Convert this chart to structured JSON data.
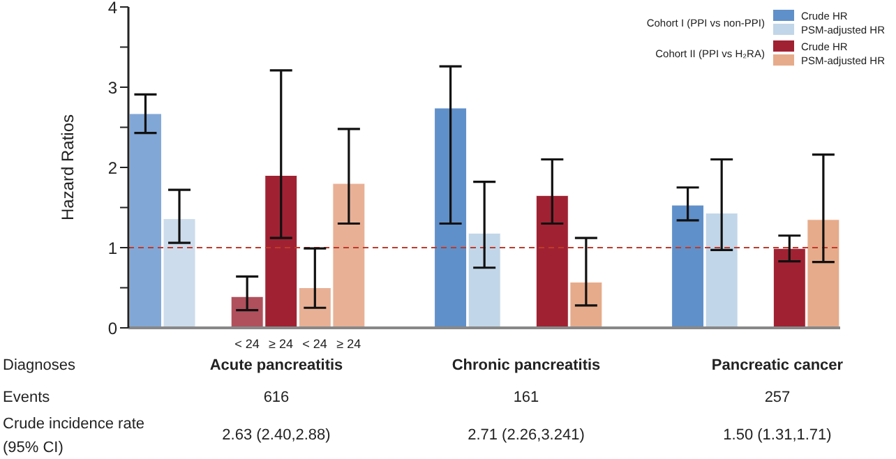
{
  "chart_data": {
    "type": "bar",
    "ylabel": "Hazard Ratios",
    "categories": [
      null,
      null,
      null,
      "< 24",
      "≥ 24",
      "< 24",
      "≥ 24",
      null,
      null,
      null,
      null,
      null,
      null,
      null,
      null,
      null,
      null,
      null,
      null,
      null,
      null
    ],
    "series": [
      {
        "name": "Crude HR",
        "color": "#6090c9",
        "values": [
          2.67,
          null,
          null,
          null,
          null,
          null,
          null,
          null,
          null,
          2.74,
          null,
          null,
          null,
          null,
          null,
          null,
          1.53,
          null,
          null,
          null,
          null
        ],
        "errors": [
          [
            2.43,
            2.91
          ],
          null,
          null,
          null,
          null,
          null,
          null,
          null,
          null,
          [
            1.3,
            3.26
          ],
          null,
          null,
          null,
          null,
          null,
          null,
          [
            1.34,
            1.75
          ],
          null,
          null,
          null,
          null
        ],
        "colors": [
          "#81a7d6",
          null,
          null,
          null,
          null,
          null,
          null,
          null,
          null,
          "#6090c9",
          null,
          null,
          null,
          null,
          null,
          null,
          "#6090c9",
          null,
          null,
          null,
          null
        ]
      },
      {
        "name": "PSM-adjusted HR",
        "color": "#c1d6e8",
        "values": [
          null,
          1.36,
          null,
          null,
          null,
          null,
          null,
          null,
          null,
          null,
          1.18,
          null,
          null,
          null,
          null,
          null,
          null,
          1.43,
          null,
          null,
          null
        ],
        "errors": [
          null,
          [
            1.06,
            1.72
          ],
          null,
          null,
          null,
          null,
          null,
          null,
          null,
          null,
          [
            0.75,
            1.82
          ],
          null,
          null,
          null,
          null,
          null,
          null,
          [
            0.97,
            2.1
          ],
          null,
          null,
          null
        ],
        "colors": [
          null,
          "#ccdcec",
          null,
          null,
          null,
          null,
          null,
          null,
          null,
          null,
          "#c1d6e8",
          null,
          null,
          null,
          null,
          null,
          null,
          "#c1d6e8",
          null,
          null,
          null
        ]
      },
      {
        "name": "Crude HR",
        "color": "#a02232",
        "values": [
          null,
          null,
          null,
          0.39,
          1.9,
          null,
          null,
          null,
          null,
          null,
          null,
          null,
          1.65,
          null,
          null,
          null,
          null,
          null,
          null,
          0.99,
          null
        ],
        "errors": [
          null,
          null,
          null,
          [
            0.22,
            0.64
          ],
          [
            1.12,
            3.21
          ],
          null,
          null,
          null,
          null,
          null,
          null,
          null,
          [
            1.3,
            2.1
          ],
          null,
          null,
          null,
          null,
          null,
          null,
          [
            0.83,
            1.15
          ],
          null
        ],
        "colors": [
          null,
          null,
          null,
          "#b0505c",
          "#a02232",
          null,
          null,
          null,
          null,
          null,
          null,
          null,
          "#a02232",
          null,
          null,
          null,
          null,
          null,
          null,
          "#a02232",
          null
        ]
      },
      {
        "name": "PSM-adjusted HR",
        "color": "#e6ab8a",
        "values": [
          null,
          null,
          null,
          null,
          null,
          0.5,
          1.8,
          null,
          null,
          null,
          null,
          null,
          null,
          0.57,
          null,
          null,
          null,
          null,
          null,
          null,
          1.35
        ],
        "errors": [
          null,
          null,
          null,
          null,
          null,
          [
            0.25,
            0.99
          ],
          [
            1.3,
            2.48
          ],
          null,
          null,
          null,
          null,
          null,
          null,
          [
            0.28,
            1.12
          ],
          null,
          null,
          null,
          null,
          null,
          null,
          [
            0.82,
            2.16
          ]
        ],
        "colors": [
          null,
          null,
          null,
          null,
          null,
          "#e8b095",
          "#e8b095",
          null,
          null,
          null,
          null,
          null,
          null,
          "#e6ab8a",
          null,
          null,
          null,
          null,
          null,
          null,
          "#e6ab8a"
        ]
      }
    ],
    "ylim": [
      0,
      4
    ],
    "yticks": [
      0,
      {
        "value": 0.5,
        "label": null
      },
      1,
      {
        "value": 1.5,
        "label": null
      },
      2,
      {
        "value": 2.5,
        "label": null
      },
      3,
      {
        "value": 3.5,
        "label": null
      },
      4
    ],
    "ref_lines": [
      {
        "axis": "y",
        "value": 1,
        "color": "#c0392b",
        "line_style": "dashed"
      }
    ],
    "legend": "top right",
    "grid": false,
    "annotations": [
      "Cohort I (PPI vs non-PPI)",
      "Cohort II (PPI vs H₂RA)",
      "Diagnoses",
      "Acute pancreatitis",
      "Chronic pancreatitis",
      "Pancreatic cancer",
      "Events",
      "616",
      "161",
      "257",
      "Crude incidence rate\n(95% CI)",
      "2.63 (2.40,2.88)",
      "2.71 (2.26,3.241)",
      "1.50 (1.31,1.71)"
    ]
  }
}
